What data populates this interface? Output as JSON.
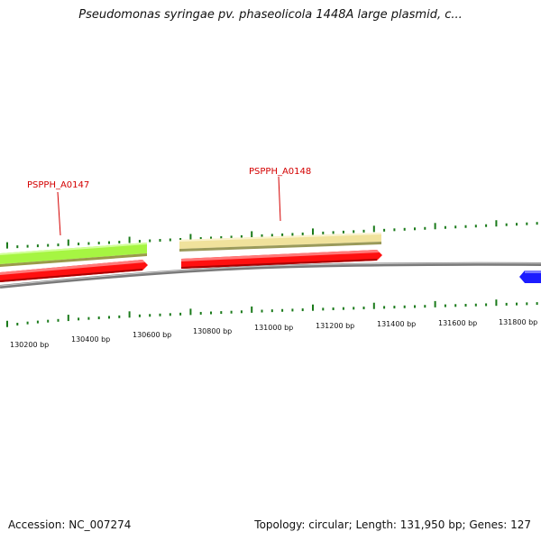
{
  "title": "Pseudomonas syringae pv. phaseolicola 1448A large plasmid, c...",
  "footer": {
    "accession": "Accession: NC_007274",
    "summary": "Topology: circular; Length: 131,950 bp; Genes: 127"
  },
  "colors": {
    "gene_green": "#a6f542",
    "gene_tan": "#f0e29c",
    "cds_red": "#ff1010",
    "backbone_gray": "#808080",
    "tick_green": "#1a7a1a",
    "label_red": "#d40000",
    "gene_blue": "#1c1cff"
  },
  "genes": [
    {
      "id": "PSPPH_A0147",
      "label": "PSPPH_A0147"
    },
    {
      "id": "PSPPH_A0148",
      "label": "PSPPH_A0148"
    }
  ],
  "scale_labels": [
    "130200 bp",
    "130400 bp",
    "130600 bp",
    "130800 bp",
    "131000 bp",
    "131200 bp",
    "131400 bp",
    "131600 bp",
    "131800 bp"
  ]
}
